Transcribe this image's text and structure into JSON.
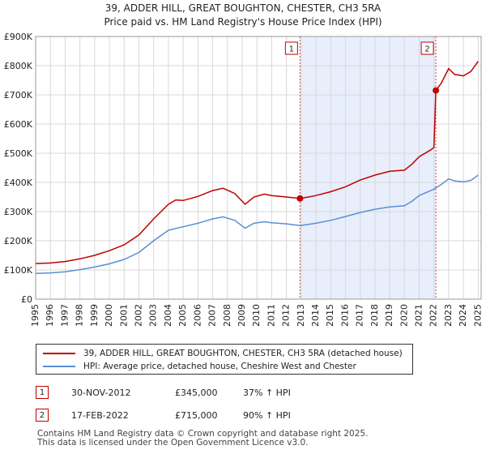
{
  "chart_data": {
    "type": "line",
    "title": "39, ADDER HILL, GREAT BOUGHTON, CHESTER, CH3 5RA",
    "subtitle": "Price paid vs. HM Land Registry's House Price Index (HPI)",
    "xlim": [
      1995,
      2025.2
    ],
    "ylim": [
      0,
      900000
    ],
    "x_ticks": [
      "1995",
      "1996",
      "1997",
      "1998",
      "1999",
      "2000",
      "2001",
      "2002",
      "2003",
      "2004",
      "2005",
      "2006",
      "2007",
      "2008",
      "2009",
      "2010",
      "2011",
      "2012",
      "2013",
      "2014",
      "2015",
      "2016",
      "2017",
      "2018",
      "2019",
      "2020",
      "2021",
      "2022",
      "2023",
      "2024",
      "2025"
    ],
    "y_ticks": [
      {
        "value": 0,
        "label": "£0"
      },
      {
        "value": 100000,
        "label": "£100K"
      },
      {
        "value": 200000,
        "label": "£200K"
      },
      {
        "value": 300000,
        "label": "£300K"
      },
      {
        "value": 400000,
        "label": "£400K"
      },
      {
        "value": 500000,
        "label": "£500K"
      },
      {
        "value": 600000,
        "label": "£600K"
      },
      {
        "value": 700000,
        "label": "£700K"
      },
      {
        "value": 800000,
        "label": "£800K"
      },
      {
        "value": 900000,
        "label": "£900K"
      }
    ],
    "shaded_region": [
      2012.92,
      2022.13
    ],
    "series": [
      {
        "name": "39, ADDER HILL, GREAT BOUGHTON, CHESTER, CH3 5RA (detached house)",
        "color": "#c00000",
        "points": [
          [
            1995,
            122000
          ],
          [
            1996,
            124000
          ],
          [
            1997,
            129000
          ],
          [
            1998,
            138000
          ],
          [
            1999,
            150000
          ],
          [
            2000,
            166000
          ],
          [
            2001,
            186000
          ],
          [
            2002,
            220000
          ],
          [
            2003,
            275000
          ],
          [
            2004,
            325000
          ],
          [
            2004.5,
            340000
          ],
          [
            2005,
            338000
          ],
          [
            2006,
            352000
          ],
          [
            2007,
            372000
          ],
          [
            2007.7,
            380000
          ],
          [
            2008.5,
            362000
          ],
          [
            2009.2,
            325000
          ],
          [
            2009.8,
            350000
          ],
          [
            2010.5,
            360000
          ],
          [
            2011,
            355000
          ],
          [
            2012,
            350000
          ],
          [
            2012.92,
            345000
          ],
          [
            2013.5,
            350000
          ],
          [
            2014,
            355000
          ],
          [
            2015,
            368000
          ],
          [
            2016,
            385000
          ],
          [
            2017,
            408000
          ],
          [
            2018,
            425000
          ],
          [
            2019,
            438000
          ],
          [
            2020,
            442000
          ],
          [
            2020.5,
            462000
          ],
          [
            2021,
            488000
          ],
          [
            2021.8,
            512000
          ],
          [
            2022.0,
            520000
          ],
          [
            2022.13,
            715000
          ],
          [
            2022.5,
            740000
          ],
          [
            2023,
            790000
          ],
          [
            2023.4,
            770000
          ],
          [
            2024,
            765000
          ],
          [
            2024.5,
            780000
          ],
          [
            2025,
            815000
          ]
        ]
      },
      {
        "name": "HPI: Average price, detached house, Cheshire West and Chester",
        "color": "#5b8ed6",
        "points": [
          [
            1995,
            88000
          ],
          [
            1996,
            90000
          ],
          [
            1997,
            94000
          ],
          [
            1998,
            101000
          ],
          [
            1999,
            110000
          ],
          [
            2000,
            121000
          ],
          [
            2001,
            136000
          ],
          [
            2002,
            160000
          ],
          [
            2003,
            200000
          ],
          [
            2004,
            236000
          ],
          [
            2005,
            248000
          ],
          [
            2006,
            260000
          ],
          [
            2007,
            275000
          ],
          [
            2007.7,
            282000
          ],
          [
            2008.5,
            270000
          ],
          [
            2009.2,
            243000
          ],
          [
            2009.8,
            260000
          ],
          [
            2010.5,
            265000
          ],
          [
            2011,
            262000
          ],
          [
            2012,
            258000
          ],
          [
            2012.92,
            252000
          ],
          [
            2013.5,
            256000
          ],
          [
            2014,
            260000
          ],
          [
            2015,
            270000
          ],
          [
            2016,
            283000
          ],
          [
            2017,
            297000
          ],
          [
            2018,
            308000
          ],
          [
            2019,
            316000
          ],
          [
            2020,
            320000
          ],
          [
            2020.5,
            335000
          ],
          [
            2021,
            355000
          ],
          [
            2022,
            377000
          ],
          [
            2022.5,
            393000
          ],
          [
            2023,
            412000
          ],
          [
            2023.4,
            405000
          ],
          [
            2024,
            402000
          ],
          [
            2024.5,
            407000
          ],
          [
            2025,
            425000
          ]
        ]
      }
    ],
    "sales": [
      {
        "marker": "1",
        "x": 2012.92,
        "value": 345000
      },
      {
        "marker": "2",
        "x": 2022.13,
        "value": 715000
      }
    ]
  },
  "legend": {
    "property_label": "39, ADDER HILL, GREAT BOUGHTON, CHESTER, CH3 5RA (detached house)",
    "hpi_label": "HPI: Average price, detached house, Cheshire West and Chester"
  },
  "transactions": [
    {
      "marker": "1",
      "date": "30-NOV-2012",
      "price": "£345,000",
      "hpi_change": "37% ↑ HPI"
    },
    {
      "marker": "2",
      "date": "17-FEB-2022",
      "price": "£715,000",
      "hpi_change": "90% ↑ HPI"
    }
  ],
  "footer": {
    "line1": "Contains HM Land Registry data © Crown copyright and database right 2025.",
    "line2": "This data is licensed under the Open Government Licence v3.0."
  },
  "colors": {
    "property": "#c00000",
    "hpi": "#5b8ed6",
    "shade": "#e8eefb"
  }
}
